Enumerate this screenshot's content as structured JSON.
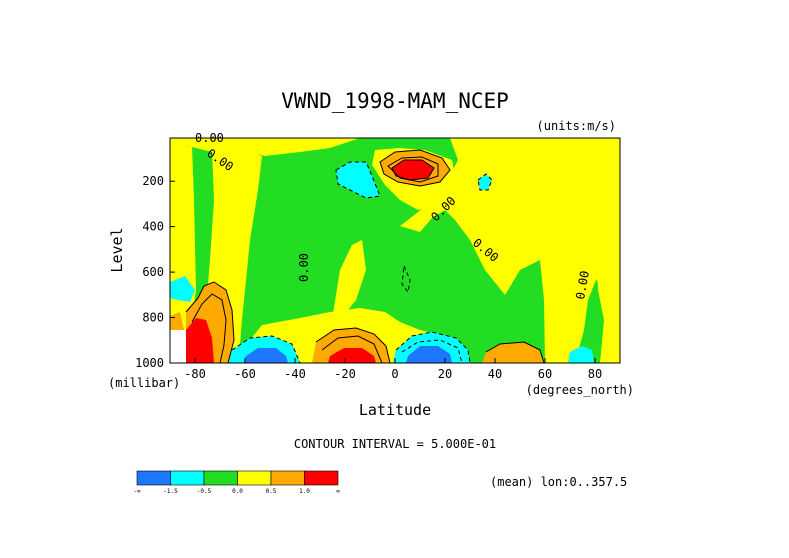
{
  "chart_data": {
    "type": "heatmap",
    "title": "VWND_1998-MAM_NCEP",
    "units_label": "(units:m/s)",
    "xlabel": "Latitude",
    "x_unit_label": "(degrees_north)",
    "ylabel": "Level",
    "y_unit_label": "(millibar)",
    "xlim": [
      -90,
      90
    ],
    "ylim": [
      1000,
      10
    ],
    "x_ticks": [
      -80,
      -60,
      -40,
      -20,
      0,
      20,
      40,
      60,
      80
    ],
    "x_tick_labels": [
      "-80",
      "-60",
      "-40",
      "-20",
      "0",
      "20",
      "40",
      "60",
      "80"
    ],
    "y_ticks": [
      200,
      400,
      600,
      800,
      1000
    ],
    "y_tick_labels": [
      "200",
      "400",
      "600",
      "800",
      "1000"
    ],
    "contour_interval_label": "CONTOUR INTERVAL = 5.000E-01",
    "mean_label": "(mean) lon:0..357.5",
    "contour_labels": [
      "0.00",
      "0.00",
      "0.00",
      "0.00",
      "0.00",
      "0.00"
    ],
    "colorbar": {
      "colors": [
        "#1e78ff",
        "#00ffff",
        "#22dd22",
        "#ffff00",
        "#ffaa00",
        "#ff0000"
      ],
      "boundary_labels": [
        "-∞",
        "-1.5",
        "-0.5",
        "0.0",
        "0.5",
        "1.0",
        "∞"
      ]
    },
    "regions": [
      {
        "name": "positive-jet-upper",
        "lat": 8,
        "level": 150,
        "value": 2.0
      },
      {
        "name": "negative-upper-south",
        "lat": -25,
        "level": 170,
        "value": -0.8
      },
      {
        "name": "negative-upper-north",
        "lat": 37,
        "level": 180,
        "value": -0.7
      },
      {
        "name": "positive-south-pole-low",
        "lat": -83,
        "level": 950,
        "value": 3.0
      },
      {
        "name": "positive-surface-south",
        "lat": -72,
        "level": 800,
        "value": 1.5
      },
      {
        "name": "negative-surface-south",
        "lat": -55,
        "level": 980,
        "value": -2.0
      },
      {
        "name": "positive-surface-subtropic-south",
        "lat": -18,
        "level": 960,
        "value": 2.2
      },
      {
        "name": "negative-surface-equator",
        "lat": 12,
        "level": 970,
        "value": -2.0
      },
      {
        "name": "positive-surface-north",
        "lat": 48,
        "level": 970,
        "value": 1.2
      },
      {
        "name": "negative-surface-arctic",
        "lat": 82,
        "level": 980,
        "value": -0.8
      }
    ]
  }
}
